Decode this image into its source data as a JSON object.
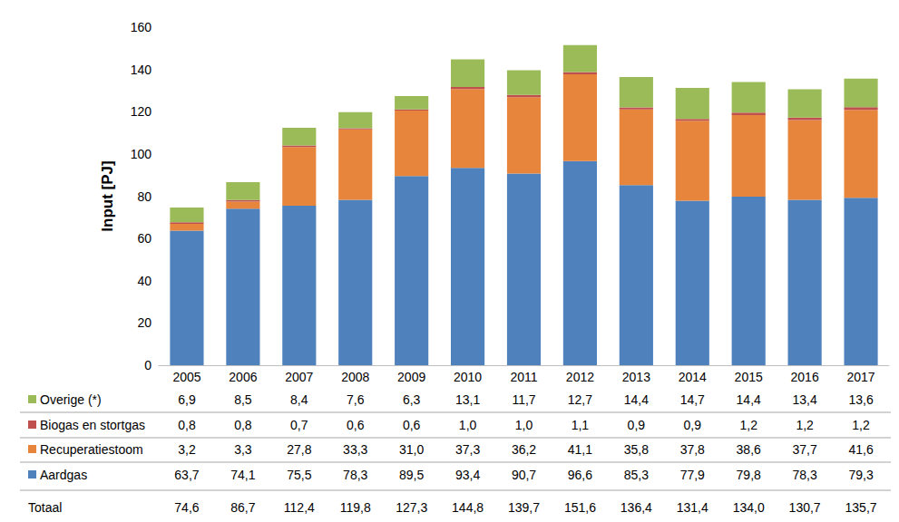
{
  "chart_data": {
    "type": "bar",
    "ylabel": "Input [PJ]",
    "categories": [
      "2005",
      "2006",
      "2007",
      "2008",
      "2009",
      "2010",
      "2011",
      "2012",
      "2013",
      "2014",
      "2015",
      "2016",
      "2017"
    ],
    "series": [
      {
        "name": "Aardgas",
        "color": "#4f81bd",
        "values": [
          63.7,
          74.1,
          75.5,
          78.3,
          89.5,
          93.4,
          90.7,
          96.6,
          85.3,
          77.9,
          79.8,
          78.3,
          79.3
        ],
        "value_labels": [
          "63,7",
          "74,1",
          "75,5",
          "78,3",
          "89,5",
          "93,4",
          "90,7",
          "96,6",
          "85,3",
          "77,9",
          "79,8",
          "78,3",
          "79,3"
        ]
      },
      {
        "name": "Recuperatiestoom",
        "color": "#e8853d",
        "values": [
          3.2,
          3.3,
          27.8,
          33.3,
          31.0,
          37.3,
          36.2,
          41.1,
          35.8,
          37.8,
          38.6,
          37.7,
          41.6
        ],
        "value_labels": [
          "3,2",
          "3,3",
          "27,8",
          "33,3",
          "31,0",
          "37,3",
          "36,2",
          "41,1",
          "35,8",
          "37,8",
          "38,6",
          "37,7",
          "41,6"
        ]
      },
      {
        "name": "Biogas en stortgas",
        "color": "#c0504d",
        "values": [
          0.8,
          0.8,
          0.7,
          0.6,
          0.6,
          1.0,
          1.0,
          1.1,
          0.9,
          0.9,
          1.2,
          1.2,
          1.2
        ],
        "value_labels": [
          "0,8",
          "0,8",
          "0,7",
          "0,6",
          "0,6",
          "1,0",
          "1,0",
          "1,1",
          "0,9",
          "0,9",
          "1,2",
          "1,2",
          "1,2"
        ]
      },
      {
        "name": "Overige (*)",
        "color": "#9bbb59",
        "values": [
          6.9,
          8.5,
          8.4,
          7.6,
          6.3,
          13.1,
          11.7,
          12.7,
          14.4,
          14.7,
          14.4,
          13.4,
          13.6
        ],
        "value_labels": [
          "6,9",
          "8,5",
          "8,4",
          "7,6",
          "6,3",
          "13,1",
          "11,7",
          "12,7",
          "14,4",
          "14,7",
          "14,4",
          "13,4",
          "13,6"
        ]
      }
    ],
    "totals": {
      "name": "Totaal",
      "values": [
        74.6,
        86.7,
        112.4,
        119.8,
        127.3,
        144.8,
        139.7,
        151.6,
        136.4,
        131.4,
        134.0,
        130.7,
        135.7
      ],
      "value_labels": [
        "74,6",
        "86,7",
        "112,4",
        "119,8",
        "127,3",
        "144,8",
        "139,7",
        "151,6",
        "136,4",
        "131,4",
        "134,0",
        "130,7",
        "135,7"
      ]
    },
    "ylim": [
      0,
      160
    ],
    "yticks": [
      0,
      20,
      40,
      60,
      80,
      100,
      120,
      140,
      160
    ],
    "stacked": true,
    "grid": false
  }
}
